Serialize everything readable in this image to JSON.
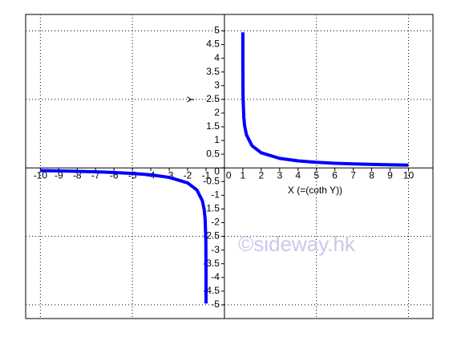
{
  "chart_data": {
    "type": "line",
    "x_label": "X (=(coth Y))",
    "y_label": "Y",
    "annotation": "©sideway.hk",
    "xlim": [
      -10.8,
      11.33
    ],
    "ylim": [
      -5.5,
      5.6
    ],
    "xticks": [
      -10,
      -9,
      -8,
      -7,
      -6,
      -5,
      -4,
      -3,
      -2,
      -1,
      0,
      1,
      2,
      3,
      4,
      5,
      6,
      7,
      8,
      9,
      10
    ],
    "yticks": [
      -5,
      -4.5,
      -4,
      -3.5,
      -3,
      -2.5,
      -2,
      -1.5,
      -1,
      -0.5,
      0,
      0.5,
      1,
      1.5,
      2,
      2.5,
      3,
      3.5,
      4,
      4.5,
      5
    ],
    "xgrid": [
      -10,
      -5,
      5,
      10
    ],
    "ygrid": [
      -5,
      -2.5,
      2.5,
      5
    ],
    "grid": true,
    "x": [
      -10,
      -9,
      -8,
      -7,
      -6,
      -5,
      -4,
      -3,
      -2,
      -1.5,
      -1.2,
      -1.1,
      -1.05,
      -1.01,
      -1.001,
      -1.0001,
      null,
      1.0001,
      1.001,
      1.01,
      1.05,
      1.1,
      1.2,
      1.5,
      2,
      3,
      4,
      5,
      6,
      7,
      8,
      9,
      10
    ],
    "series": [
      {
        "name": "Y",
        "color": "#0000ff",
        "values": [
          -0.1,
          -0.112,
          -0.126,
          -0.144,
          -0.168,
          -0.203,
          -0.255,
          -0.347,
          -0.549,
          -0.805,
          -1.199,
          -1.522,
          -1.857,
          -2.65,
          -3.8,
          -4.95,
          null,
          4.95,
          3.8,
          2.65,
          1.857,
          1.522,
          1.199,
          0.805,
          0.549,
          0.347,
          0.255,
          0.203,
          0.168,
          0.144,
          0.126,
          0.112,
          0.1
        ]
      }
    ]
  }
}
